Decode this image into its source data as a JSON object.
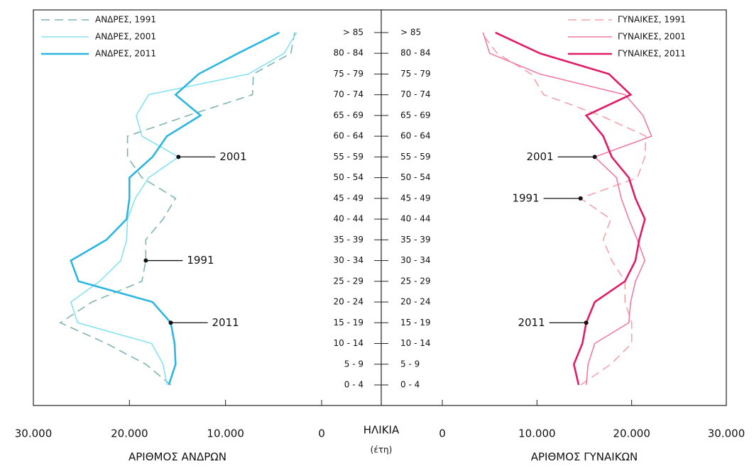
{
  "chart_data": [
    {
      "type": "line",
      "xlabel": "ΑΡΙΘΜΟΣ ΑΝΔΡΩΝ",
      "legend": "upper left",
      "categories": [
        "0 - 4",
        "5 - 9",
        "10 - 14",
        "15 - 19",
        "20 - 24",
        "25 - 29",
        "30 - 34",
        "35 - 39",
        "40 - 44",
        "45 - 49",
        "50 - 54",
        "55 - 59",
        "60 - 64",
        "65 - 69",
        "70 - 74",
        "75 - 79",
        "80 - 84",
        "> 85"
      ],
      "xlim": [
        30000,
        0
      ],
      "xticks": [
        {
          "value": 30000,
          "label": "30.000"
        },
        {
          "value": 20000,
          "label": "20.000"
        },
        {
          "value": 10000,
          "label": "10.000"
        },
        0
      ],
      "series": [
        {
          "name": "ΑΝΔΡΕΣ, 1991",
          "color": "#7fb4b4",
          "dashed": true,
          "values": [
            15700,
            18300,
            22400,
            27200,
            23900,
            18700,
            18300,
            18300,
            16500,
            15200,
            18700,
            20200,
            20200,
            13900,
            7200,
            7100,
            3200,
            2800
          ]
        },
        {
          "name": "ΑΝΔΡΕΣ, 2001",
          "color": "#86e2f0",
          "dashed": false,
          "values": [
            16100,
            16500,
            17700,
            25400,
            26100,
            23100,
            20900,
            20300,
            20200,
            19400,
            18000,
            14900,
            18700,
            19300,
            18000,
            7600,
            3900,
            2600
          ]
        },
        {
          "name": "ΑΝΔΡΕΣ, 2011",
          "color": "#2db6e0",
          "dashed": false,
          "values": [
            15900,
            15200,
            15300,
            15700,
            17600,
            25300,
            26100,
            22400,
            20300,
            20000,
            20000,
            17600,
            16100,
            12600,
            15200,
            12800,
            8700,
            4400
          ]
        }
      ],
      "annotations": [
        "2001",
        "1991",
        "2011"
      ]
    },
    {
      "type": "line",
      "xlabel": "ΑΡΙΘΜΟΣ ΓΥΝΑΙΚΩΝ",
      "legend": "upper right",
      "categories": [
        "0 - 4",
        "5 - 9",
        "10 - 14",
        "15 - 19",
        "20 - 24",
        "25 - 29",
        "30 - 34",
        "35 - 39",
        "40 - 44",
        "45 - 49",
        "50 - 54",
        "55 - 59",
        "60 - 64",
        "65 - 69",
        "70 - 74",
        "75 - 79",
        "80 - 84",
        "> 85"
      ],
      "xlim": [
        0,
        30000
      ],
      "xticks": [
        0,
        {
          "value": 10000,
          "label": "10.000"
        },
        {
          "value": 20000,
          "label": "20.000"
        },
        {
          "value": 30000,
          "label": "30.000"
        }
      ],
      "series": [
        {
          "name": "ΓΥΝΑΙΚΕΣ, 1991",
          "color": "#f4a2aa",
          "dashed": true,
          "values": [
            14600,
            17800,
            20000,
            20000,
            19300,
            19300,
            17900,
            17000,
            17800,
            14600,
            20600,
            21400,
            21500,
            16700,
            10700,
            9400,
            5800,
            4100
          ]
        },
        {
          "name": "ΓΥΝΑΙΚΕΣ, 2001",
          "color": "#f07aa6",
          "dashed": false,
          "values": [
            15200,
            15400,
            16100,
            19700,
            19900,
            20400,
            21400,
            20600,
            19700,
            18900,
            18400,
            16100,
            22100,
            21200,
            19300,
            10300,
            5000,
            4300
          ]
        },
        {
          "name": "ΓΥΝΑΙΚΕΣ, 2011",
          "color": "#e01c68",
          "dashed": false,
          "values": [
            14400,
            13900,
            14800,
            15200,
            16100,
            19300,
            20400,
            20800,
            21400,
            20400,
            19700,
            17900,
            17000,
            15200,
            19900,
            17600,
            10300,
            5600
          ]
        }
      ],
      "annotations": [
        "2001",
        "1991",
        "2011"
      ]
    }
  ],
  "center_axis": {
    "title": "ΗΛΙΚΙΑ",
    "unit": "(έτη)"
  }
}
